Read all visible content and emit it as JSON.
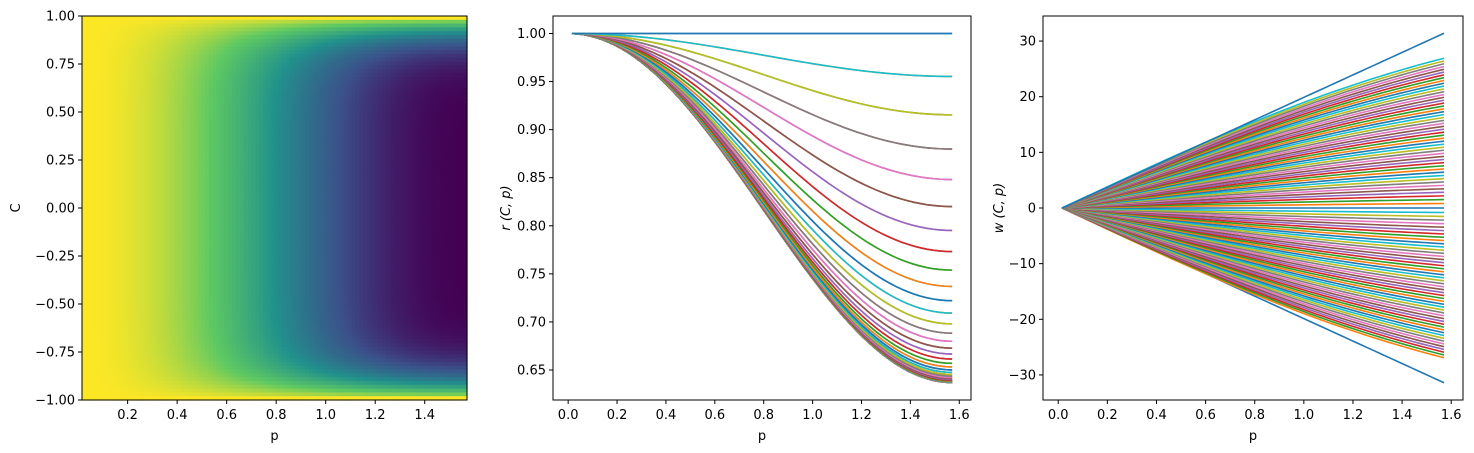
{
  "chart_data": [
    {
      "type": "heatmap",
      "xlabel": "p",
      "ylabel": "C",
      "xlim": [
        0.0157,
        1.5708
      ],
      "ylim": [
        -1.0,
        1.0
      ],
      "xticks": [
        0.2,
        0.4,
        0.6,
        0.8,
        1.0,
        1.2,
        1.4
      ],
      "yticks": [
        -1.0,
        -0.75,
        -0.5,
        -0.25,
        0.0,
        0.25,
        0.5,
        0.75,
        1.0
      ],
      "xtick_labels": [
        "0.2",
        "0.4",
        "0.6",
        "0.8",
        "1.0",
        "1.2",
        "1.4"
      ],
      "ytick_labels": [
        "−1.00",
        "−0.75",
        "−0.50",
        "−0.25",
        "0.00",
        "0.25",
        "0.50",
        "0.75",
        "1.00"
      ],
      "colormap": "viridis",
      "grid": false,
      "value_range": [
        0.637,
        1.0
      ],
      "x_resolution": 100,
      "y_resolution": 101,
      "value_model": "cos(p*C) + sin(p*C)*sin(p)/(p*C) with C=0 → 1 at every p; |C|=1 → 1"
    },
    {
      "type": "line",
      "xlabel": "p",
      "ylabel": "r (C, p)",
      "xlim": [
        -0.062,
        1.648
      ],
      "ylim": [
        0.6188,
        1.0182
      ],
      "xticks": [
        0.0,
        0.2,
        0.4,
        0.6,
        0.8,
        1.0,
        1.2,
        1.4,
        1.6
      ],
      "yticks": [
        0.65,
        0.7,
        0.75,
        0.8,
        0.85,
        0.9,
        0.95,
        1.0
      ],
      "xtick_labels": [
        "0.0",
        "0.2",
        "0.4",
        "0.6",
        "0.8",
        "1.0",
        "1.2",
        "1.4",
        "1.6"
      ],
      "ytick_labels": [
        "0.65",
        "0.70",
        "0.75",
        "0.80",
        "0.85",
        "0.90",
        "0.95",
        "1.00"
      ],
      "grid": false,
      "legend": "none",
      "x_range": [
        0.0157,
        1.5708
      ],
      "series_count": 101,
      "C_range": [
        -1.0,
        1.0
      ],
      "series_endpoints_at_p_1_5708": [
        0.637,
        0.64,
        0.65,
        0.67,
        0.69,
        0.71,
        0.74,
        0.765,
        0.79,
        0.81,
        0.828,
        0.853,
        0.89,
        1.0
      ],
      "colors": [
        "#1f77b4",
        "#ff7f0e",
        "#2ca02c",
        "#d62728",
        "#9467bd",
        "#8c564b",
        "#e377c2",
        "#7f7f7f",
        "#bcbd22",
        "#17becf"
      ]
    },
    {
      "type": "line",
      "xlabel": "p",
      "ylabel": "w (C, p)",
      "xlim": [
        -0.062,
        1.648
      ],
      "ylim": [
        -34.5,
        34.5
      ],
      "xticks": [
        0.0,
        0.2,
        0.4,
        0.6,
        0.8,
        1.0,
        1.2,
        1.4,
        1.6
      ],
      "yticks": [
        -30,
        -20,
        -10,
        0,
        10,
        20,
        30
      ],
      "xtick_labels": [
        "0.0",
        "0.2",
        "0.4",
        "0.6",
        "0.8",
        "1.0",
        "1.2",
        "1.4",
        "1.6"
      ],
      "ytick_labels": [
        "−30",
        "−20",
        "−10",
        "0",
        "10",
        "20",
        "30"
      ],
      "grid": false,
      "legend": "none",
      "x_range": [
        0.0157,
        1.5708
      ],
      "series_count": 101,
      "C_range": [
        -1.0,
        1.0
      ],
      "series_endpoints_at_p_1_5708": [
        31.4,
        27.4,
        25.6,
        24.4,
        23.4,
        22.4,
        21.4,
        20.6,
        19.8,
        19.0,
        18.3,
        17.5,
        16.7,
        16.0,
        15.2,
        14.5,
        13.7,
        13.0,
        12.3,
        11.5,
        10.8,
        10.1,
        9.4,
        8.7,
        8.0,
        7.3,
        6.6,
        5.9,
        5.2,
        4.5,
        3.8,
        3.1,
        2.4,
        1.7,
        1.0,
        0.3,
        0.0,
        -0.3,
        -1.0,
        -1.7,
        -2.4,
        -3.1,
        -3.8,
        -4.5,
        -5.2,
        -5.9,
        -6.6,
        -7.3,
        -8.0,
        -8.7,
        -9.4,
        -10.1,
        -10.8,
        -11.5,
        -12.3,
        -13.0,
        -13.7,
        -14.5,
        -15.2,
        -16.0,
        -16.7,
        -17.5,
        -18.3,
        -19.0,
        -19.8,
        -20.6,
        -21.4,
        -22.4,
        -23.4,
        -24.4,
        -25.6,
        -27.4,
        -31.4
      ],
      "colors": [
        "#1f77b4",
        "#ff7f0e",
        "#2ca02c",
        "#d62728",
        "#9467bd",
        "#8c564b",
        "#e377c2",
        "#7f7f7f",
        "#bcbd22",
        "#17becf"
      ]
    }
  ]
}
